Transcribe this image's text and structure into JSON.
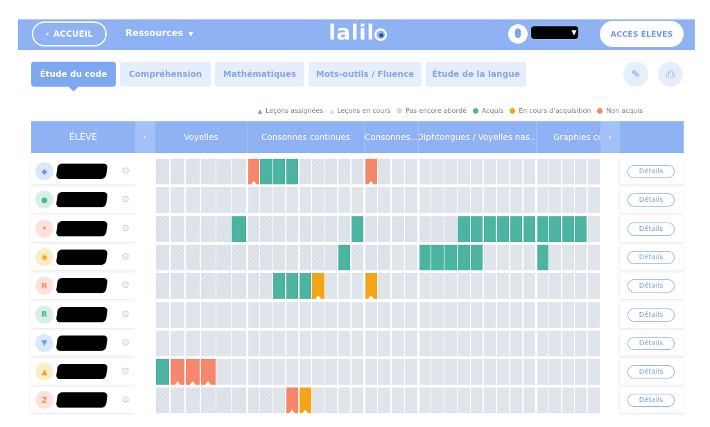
{
  "topbar": {
    "accueil_label": "ACCUEIL",
    "ressources_label": "Ressources",
    "logo_text": "lalil",
    "acces_label": "ACCÈS ÉLÈVES"
  },
  "tabs": [
    {
      "label": "Étude du code",
      "active": true
    },
    {
      "label": "Compréhension",
      "active": false
    },
    {
      "label": "Mathématiques",
      "active": false
    },
    {
      "label": "Mots-outils / Fluence",
      "active": false
    },
    {
      "label": "Étude de la langue",
      "active": false
    }
  ],
  "actions": {
    "edit_icon": "edit-icon",
    "print_icon": "print-icon"
  },
  "legend": [
    {
      "label": "Leçons assignées",
      "type": "triangle",
      "color": "#6f97e8"
    },
    {
      "label": "Leçons en cours",
      "type": "triangle",
      "color": "#c7d6f3"
    },
    {
      "label": "Pas encore abordé",
      "type": "dot",
      "color": "#d5dce7"
    },
    {
      "label": "Acquis",
      "type": "dot",
      "color": "#4cb4a0"
    },
    {
      "label": "En cours d'acquisition",
      "type": "dot",
      "color": "#f5a417"
    },
    {
      "label": "Non acquis",
      "type": "dot",
      "color": "#f7876c"
    }
  ],
  "table": {
    "eleve_header": "ÉLÈVE",
    "groups": [
      "Voyelles",
      "Consonnes continues",
      "Consonnes...",
      "Diphtongues / Voyelles nas...",
      "Graphies cc"
    ],
    "group_lessons": [
      6,
      9,
      4,
      9,
      5
    ],
    "details_label": "Détails",
    "students": [
      {
        "avatar_color": "#dbe8fb",
        "avatar_fg": "#6b9de8",
        "glyph": "◆",
        "hatch": 17,
        "cells": {
          "6": "non",
          "7": "acq",
          "8": "acq",
          "9": "acq",
          "15": "non"
        }
      },
      {
        "avatar_color": "#d6efe9",
        "avatar_fg": "#4cb4a0",
        "glyph": "●",
        "hatch": 0,
        "cells": {}
      },
      {
        "avatar_color": "#fde2dc",
        "avatar_fg": "#f7876c",
        "glyph": "✶",
        "hatch": 22,
        "cells": {
          "5": "acq",
          "14": "acq",
          "22": "acq",
          "23": "acq",
          "24": "acq",
          "25": "acq",
          "26": "acq",
          "27": "acq",
          "28": "acq",
          "29": "acq",
          "30": "acq",
          "31": "acq"
        }
      },
      {
        "avatar_color": "#fdecc8",
        "avatar_fg": "#f5a417",
        "glyph": "◉",
        "hatch": 17,
        "cells": {
          "13": "acq",
          "19": "acq",
          "20": "acq",
          "21": "acq",
          "22": "acq",
          "23": "acq",
          "28": "acq"
        }
      },
      {
        "avatar_color": "#fde2dc",
        "avatar_fg": "#f7876c",
        "glyph": "R",
        "hatch": 8,
        "cells": {
          "8": "acq",
          "9": "acq",
          "10": "acq",
          "11": "enc",
          "15": "enc"
        }
      },
      {
        "avatar_color": "#d6efe9",
        "avatar_fg": "#4cb4a0",
        "glyph": "R",
        "hatch": 0,
        "cells": {}
      },
      {
        "avatar_color": "#dbe8fb",
        "avatar_fg": "#6b9de8",
        "glyph": "▼",
        "hatch": 0,
        "cells": {}
      },
      {
        "avatar_color": "#fdecc8",
        "avatar_fg": "#f5a417",
        "glyph": "▲",
        "hatch": 0,
        "cells": {
          "0": "acq",
          "1": "non",
          "2": "non",
          "3": "non"
        }
      },
      {
        "avatar_color": "#fde2dc",
        "avatar_fg": "#f7876c",
        "glyph": "Z",
        "hatch": 8,
        "cells": {
          "9": "non",
          "10": "enc"
        }
      }
    ]
  }
}
